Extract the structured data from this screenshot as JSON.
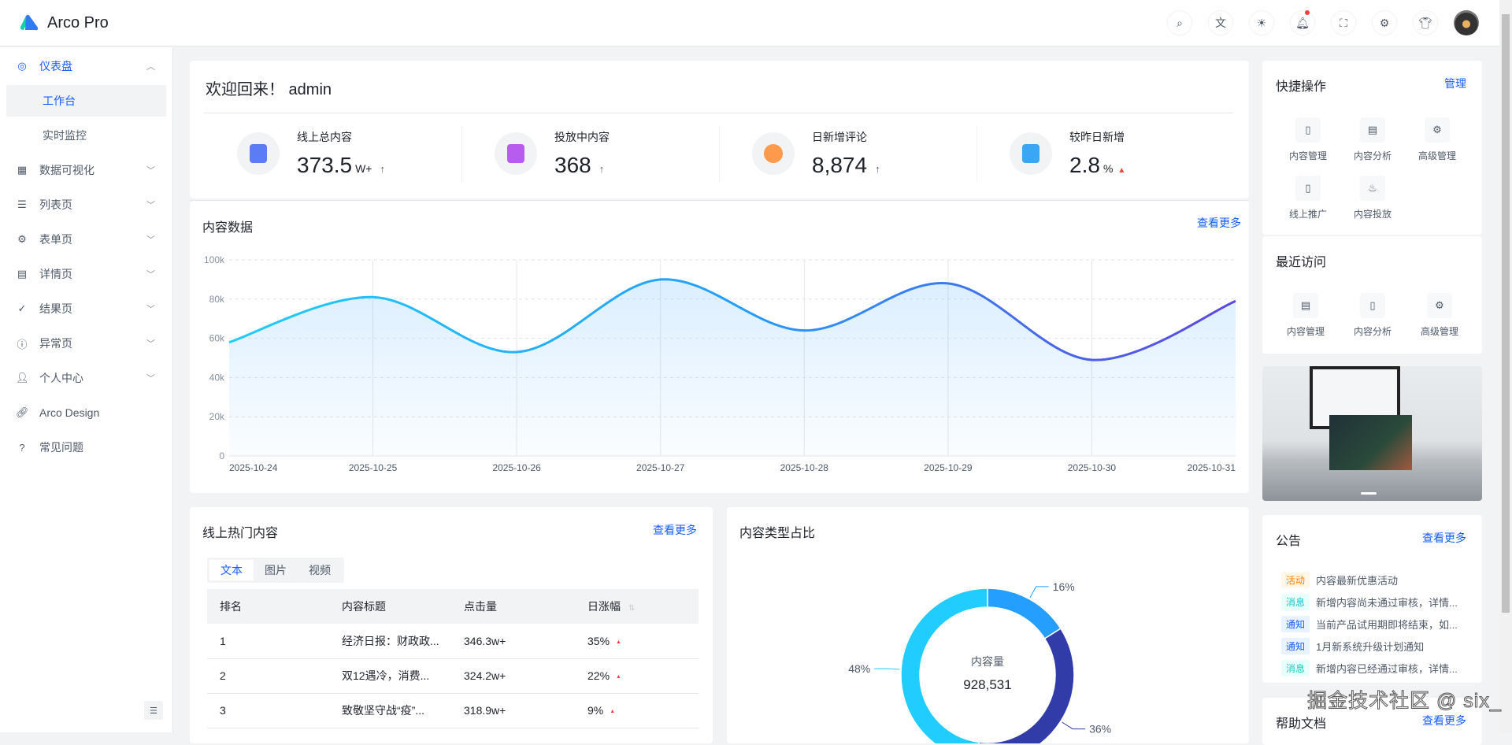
{
  "app": {
    "title": "Arco Pro"
  },
  "header": {
    "icons": [
      "search-icon",
      "translate-icon",
      "theme-icon",
      "bell-icon",
      "fullscreen-icon",
      "settings-icon",
      "skin-icon"
    ],
    "notification_dot_color": "#f53f3f"
  },
  "sidebar": {
    "items": [
      {
        "label": "仪表盘",
        "icon": "dashboard-icon",
        "expanded": true,
        "children": [
          {
            "label": "工作台",
            "active": true
          },
          {
            "label": "实时监控"
          }
        ]
      },
      {
        "label": "数据可视化",
        "icon": "apps-icon"
      },
      {
        "label": "列表页",
        "icon": "list-icon"
      },
      {
        "label": "表单页",
        "icon": "settings-icon"
      },
      {
        "label": "详情页",
        "icon": "file-icon"
      },
      {
        "label": "结果页",
        "icon": "check-circle-icon"
      },
      {
        "label": "异常页",
        "icon": "exclamation-circle-icon"
      },
      {
        "label": "个人中心",
        "icon": "user-icon"
      },
      {
        "label": "Arco Design",
        "icon": "link-icon"
      },
      {
        "label": "常见问题",
        "icon": "question-circle-icon"
      }
    ]
  },
  "welcome": {
    "greeting": "欢迎回来！ admin",
    "stats": [
      {
        "label": "线上总内容",
        "value": "373.5",
        "unit": "W+",
        "trend": "↑"
      },
      {
        "label": "投放中内容",
        "value": "368",
        "unit": "",
        "trend": "↑"
      },
      {
        "label": "日新增评论",
        "value": "8,874",
        "unit": "",
        "trend": "↑"
      },
      {
        "label": "较昨日新增",
        "value": "2.8",
        "unit": "%",
        "trend": "▲"
      }
    ]
  },
  "content_chart": {
    "title": "内容数据",
    "more": "查看更多"
  },
  "chart_data": {
    "type": "area",
    "x": [
      "2025-10-24",
      "2025-10-25",
      "2025-10-26",
      "2025-10-27",
      "2025-10-28",
      "2025-10-29",
      "2025-10-30",
      "2025-10-31"
    ],
    "values": [
      58000,
      81000,
      53000,
      90000,
      64000,
      88000,
      49000,
      79000
    ],
    "ylim": [
      0,
      100000
    ],
    "yticks": [
      "0",
      "20k",
      "40k",
      "60k",
      "80k",
      "100k"
    ],
    "grid": true,
    "line_gradient": [
      "#21CCFF",
      "#249EFF",
      "#5B47E0"
    ]
  },
  "hot": {
    "title": "线上热门内容",
    "more": "查看更多",
    "tabs": [
      "文本",
      "图片",
      "视频"
    ],
    "columns": [
      "排名",
      "内容标题",
      "点击量",
      "日涨幅"
    ],
    "rows": [
      [
        "1",
        "经济日报：财政政...",
        "346.3w+",
        "35%"
      ],
      [
        "2",
        "双12遇冷，消费...",
        "324.2w+",
        "22%"
      ],
      [
        "3",
        "致敬坚守战“疫”...",
        "318.9w+",
        "9%"
      ]
    ]
  },
  "pie": {
    "title": "内容类型占比",
    "center_label": "内容量",
    "center_value": "928,531",
    "slices": [
      {
        "label": "16%",
        "value": 16,
        "color": "#249EFF"
      },
      {
        "label": "36%",
        "value": 36,
        "color": "#313CA9"
      },
      {
        "label": "48%",
        "value": 48,
        "color": "#21CCFF"
      }
    ]
  },
  "quick": {
    "title": "快捷操作",
    "manage": "管理",
    "items": [
      {
        "label": "内容管理",
        "icon": "file-icon"
      },
      {
        "label": "内容分析",
        "icon": "storage-icon"
      },
      {
        "label": "高级管理",
        "icon": "settings-icon"
      },
      {
        "label": "线上推广",
        "icon": "mobile-icon"
      },
      {
        "label": "内容投放",
        "icon": "fire-icon"
      }
    ]
  },
  "recent": {
    "title": "最近访问",
    "items": [
      {
        "label": "内容管理",
        "icon": "storage-icon"
      },
      {
        "label": "内容分析",
        "icon": "file-icon"
      },
      {
        "label": "高级管理",
        "icon": "settings-icon"
      }
    ]
  },
  "announce": {
    "title": "公告",
    "more": "查看更多",
    "items": [
      {
        "tag": "活动",
        "text": "内容最新优惠活动",
        "color": "#ff7d00",
        "bg": "#fff7e8"
      },
      {
        "tag": "消息",
        "text": "新增内容尚未通过审核，详情...",
        "color": "#14c9c9",
        "bg": "#e8fffb"
      },
      {
        "tag": "通知",
        "text": "当前产品试用期即将结束，如...",
        "color": "#165dff",
        "bg": "#e8f3ff"
      },
      {
        "tag": "通知",
        "text": "1月新系统升级计划通知",
        "color": "#165dff",
        "bg": "#e8f3ff"
      },
      {
        "tag": "消息",
        "text": "新增内容已经通过审核，详情...",
        "color": "#14c9c9",
        "bg": "#e8fffb"
      }
    ]
  },
  "help": {
    "title": "帮助文档",
    "more": "查看更多"
  },
  "watermark": "掘金技术社区 @ six_"
}
